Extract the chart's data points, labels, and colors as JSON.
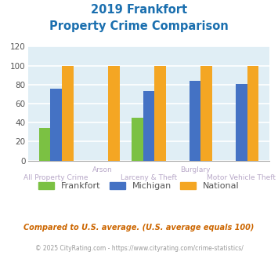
{
  "title_line1": "2019 Frankfort",
  "title_line2": "Property Crime Comparison",
  "title_color": "#1a6faf",
  "frankfort": [
    34,
    0,
    45,
    0,
    0
  ],
  "michigan": [
    76,
    0,
    73,
    84,
    81
  ],
  "national": [
    100,
    100,
    100,
    100,
    100
  ],
  "bar_colors": {
    "frankfort": "#7bc143",
    "michigan": "#4472c4",
    "national": "#f4a623"
  },
  "xlabels_bottom": [
    "All Property Crime",
    "Larceny & Theft",
    "Motor Vehicle Theft"
  ],
  "xlabels_bottom_pos": [
    0,
    2,
    4
  ],
  "xlabels_top": [
    "Arson",
    "Burglary"
  ],
  "xlabels_top_pos": [
    1,
    3
  ],
  "ylim": [
    0,
    120
  ],
  "yticks": [
    0,
    20,
    40,
    60,
    80,
    100,
    120
  ],
  "plot_bg": "#e0eef5",
  "grid_color": "#ffffff",
  "xlabel_color_bottom": "#b8a8c8",
  "xlabel_color_top": "#b8a8c8",
  "footnote1": "Compared to U.S. average. (U.S. average equals 100)",
  "footnote2": "© 2025 CityRating.com - https://www.cityrating.com/crime-statistics/",
  "footnote1_color": "#cc6600",
  "footnote2_color": "#999999",
  "legend_labels": [
    "Frankfort",
    "Michigan",
    "National"
  ]
}
